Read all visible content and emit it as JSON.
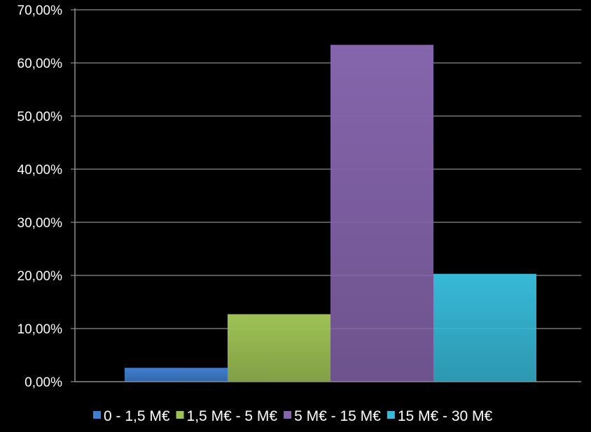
{
  "chart_data": {
    "type": "bar",
    "title": "",
    "xlabel": "",
    "ylabel": "",
    "ylim": [
      0,
      70
    ],
    "y_ticks": [
      0,
      10,
      20,
      30,
      40,
      50,
      60,
      70
    ],
    "y_tick_labels": [
      "0,00%",
      "10,00%",
      "20,00%",
      "30,00%",
      "40,00%",
      "50,00%",
      "60,00%",
      "70,00%"
    ],
    "grid": true,
    "legend_position": "bottom",
    "categories": [
      ""
    ],
    "series": [
      {
        "name": "0 - 1,5 M€",
        "values": [
          2.6
        ],
        "color": "#3f7fcf"
      },
      {
        "name": "1,5 M€ - 5 M€",
        "values": [
          12.7
        ],
        "color": "#9ec255"
      },
      {
        "name": "5 M€ - 15 M€",
        "values": [
          63.4
        ],
        "color": "#8565ac"
      },
      {
        "name": "15 M€ - 30 M€",
        "values": [
          20.3
        ],
        "color": "#37b9d7"
      }
    ]
  },
  "colors": {
    "background": "#000000",
    "axis": "#8c8c8c",
    "text": "#ffffff"
  }
}
